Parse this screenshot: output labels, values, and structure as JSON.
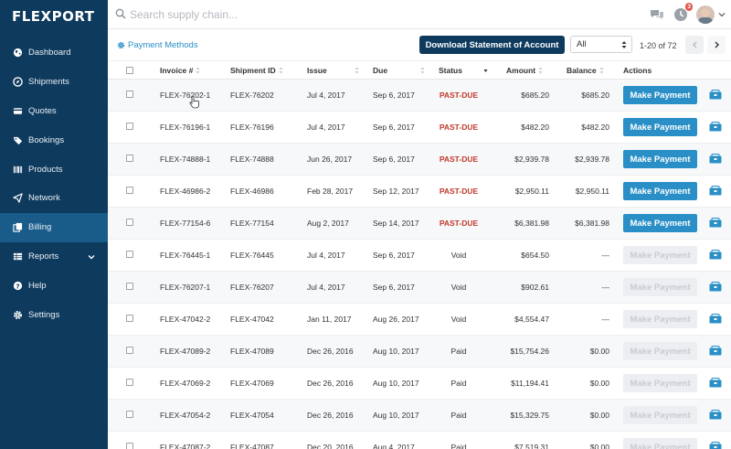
{
  "brand": {
    "logo": "FLEXPORT"
  },
  "sidebar": {
    "items": [
      {
        "label": "Dashboard",
        "icon": "globe-icon"
      },
      {
        "label": "Shipments",
        "icon": "compass-icon"
      },
      {
        "label": "Quotes",
        "icon": "card-icon"
      },
      {
        "label": "Bookings",
        "icon": "tag-icon"
      },
      {
        "label": "Products",
        "icon": "barcode-icon"
      },
      {
        "label": "Network",
        "icon": "paper-plane-icon"
      },
      {
        "label": "Billing",
        "icon": "copy-icon",
        "active": true
      },
      {
        "label": "Reports",
        "icon": "table-icon",
        "has_chevron": true
      },
      {
        "label": "Help",
        "icon": "question-icon"
      },
      {
        "label": "Settings",
        "icon": "gear-icon"
      }
    ]
  },
  "topbar": {
    "search_placeholder": "Search supply chain...",
    "notification_count": "3"
  },
  "toolbar": {
    "payment_methods_label": "Payment Methods",
    "download_label": "Download Statement of Account",
    "filter_value": "All",
    "pager_text": "1-20 of 72"
  },
  "table": {
    "headers": [
      "Invoice #",
      "Shipment ID",
      "Issue",
      "Due",
      "Status",
      "Amount",
      "Balance",
      "Actions"
    ],
    "pay_label": "Make Payment",
    "rows": [
      {
        "invoice": "FLEX-76202-1",
        "shipment": "FLEX-76202",
        "issue": "Jul 4, 2017",
        "due": "Sep 6, 2017",
        "status": "PAST-DUE",
        "amount": "$685.20",
        "balance": "$685.20",
        "payable": true
      },
      {
        "invoice": "FLEX-76196-1",
        "shipment": "FLEX-76196",
        "issue": "Jul 4, 2017",
        "due": "Sep 6, 2017",
        "status": "PAST-DUE",
        "amount": "$482.20",
        "balance": "$482.20",
        "payable": true
      },
      {
        "invoice": "FLEX-74888-1",
        "shipment": "FLEX-74888",
        "issue": "Jun 26, 2017",
        "due": "Sep 6, 2017",
        "status": "PAST-DUE",
        "amount": "$2,939.78",
        "balance": "$2,939.78",
        "payable": true
      },
      {
        "invoice": "FLEX-46986-2",
        "shipment": "FLEX-46986",
        "issue": "Feb 28, 2017",
        "due": "Sep 12, 2017",
        "status": "PAST-DUE",
        "amount": "$2,950.11",
        "balance": "$2,950.11",
        "payable": true
      },
      {
        "invoice": "FLEX-77154-6",
        "shipment": "FLEX-77154",
        "issue": "Aug 2, 2017",
        "due": "Sep 14, 2017",
        "status": "PAST-DUE",
        "amount": "$6,381.98",
        "balance": "$6,381.98",
        "payable": true
      },
      {
        "invoice": "FLEX-76445-1",
        "shipment": "FLEX-76445",
        "issue": "Jul 4, 2017",
        "due": "Sep 6, 2017",
        "status": "Void",
        "amount": "$654.50",
        "balance": "---",
        "payable": false
      },
      {
        "invoice": "FLEX-76207-1",
        "shipment": "FLEX-76207",
        "issue": "Jul 4, 2017",
        "due": "Sep 6, 2017",
        "status": "Void",
        "amount": "$902.61",
        "balance": "---",
        "payable": false
      },
      {
        "invoice": "FLEX-47042-2",
        "shipment": "FLEX-47042",
        "issue": "Jan 11, 2017",
        "due": "Aug 26, 2017",
        "status": "Void",
        "amount": "$4,554.47",
        "balance": "---",
        "payable": false
      },
      {
        "invoice": "FLEX-47089-2",
        "shipment": "FLEX-47089",
        "issue": "Dec 26, 2016",
        "due": "Aug 10, 2017",
        "status": "Paid",
        "amount": "$15,754.26",
        "balance": "$0.00",
        "payable": false
      },
      {
        "invoice": "FLEX-47069-2",
        "shipment": "FLEX-47069",
        "issue": "Dec 26, 2016",
        "due": "Aug 10, 2017",
        "status": "Paid",
        "amount": "$11,194.41",
        "balance": "$0.00",
        "payable": false
      },
      {
        "invoice": "FLEX-47054-2",
        "shipment": "FLEX-47054",
        "issue": "Dec 26, 2016",
        "due": "Aug 10, 2017",
        "status": "Paid",
        "amount": "$15,329.75",
        "balance": "$0.00",
        "payable": false
      },
      {
        "invoice": "FLEX-47087-2",
        "shipment": "FLEX-47087",
        "issue": "Dec 20, 2016",
        "due": "Aug 4, 2017",
        "status": "Paid",
        "amount": "$7,519.31",
        "balance": "$0.00",
        "payable": false
      }
    ]
  },
  "colors": {
    "sidebar": "#0e3a5e",
    "active": "#195c8a",
    "accent": "#2a8fc6",
    "past_due": "#c0392b"
  }
}
